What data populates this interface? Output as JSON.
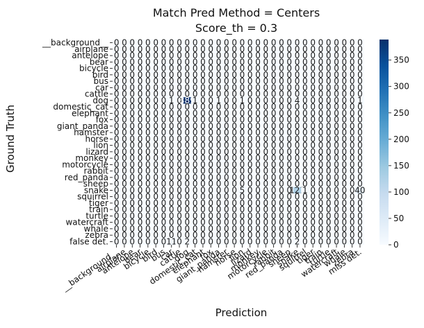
{
  "chart_data": {
    "type": "heatmap",
    "title": "Match Pred Method = Centers",
    "subtitle": "Score_th = 0.3",
    "xlabel": "Prediction",
    "ylabel": "Ground Truth",
    "row_labels": [
      "__background__",
      "airplane",
      "antelope",
      "bear",
      "bicycle",
      "bird",
      "bus",
      "car",
      "cattle",
      "dog",
      "domestic_cat",
      "elephant",
      "fox",
      "giant_panda",
      "hamster",
      "horse",
      "lion",
      "lizard",
      "monkey",
      "motorcycle",
      "rabbit",
      "red_panda",
      "sheep",
      "snake",
      "squirrel",
      "tiger",
      "train",
      "turtle",
      "watercraft",
      "whale",
      "zebra",
      "false det."
    ],
    "col_labels": [
      "__background__",
      "airplane",
      "antelope",
      "bear",
      "bicycle",
      "bird",
      "bus",
      "car",
      "cattle",
      "dog",
      "domestic_cat",
      "elephant",
      "fox",
      "giant_panda",
      "hamster",
      "horse",
      "lion",
      "lizard",
      "monkey",
      "motorcycle",
      "rabbit",
      "red_panda",
      "sheep",
      "snake",
      "squirrel",
      "tiger",
      "train",
      "turtle",
      "watercraft",
      "whale",
      "zebra",
      "miss det."
    ],
    "nonzero_cells": [
      {
        "row": "dog",
        "col": "dog",
        "value": 389
      },
      {
        "row": "dog",
        "col": "car",
        "value": 1
      },
      {
        "row": "dog",
        "col": "domestic_cat",
        "value": 1
      },
      {
        "row": "dog",
        "col": "giant_panda",
        "value": 1
      },
      {
        "row": "dog",
        "col": "lion",
        "value": 1
      },
      {
        "row": "dog",
        "col": "snake",
        "value": 4
      },
      {
        "row": "dog",
        "col": "miss det.",
        "value": 1
      },
      {
        "row": "snake",
        "col": "lion",
        "value": 5
      },
      {
        "row": "snake",
        "col": "snake",
        "value": 121
      },
      {
        "row": "snake",
        "col": "squirrel",
        "value": 1
      },
      {
        "row": "snake",
        "col": "miss det.",
        "value": 40
      },
      {
        "row": "false det.",
        "col": "car",
        "value": 11
      },
      {
        "row": "false det.",
        "col": "dog",
        "value": 2
      },
      {
        "row": "false det.",
        "col": "snake",
        "value": 2
      }
    ],
    "default_value": 0,
    "colorbar": {
      "min": 0,
      "max": 389,
      "ticks": [
        0,
        50,
        100,
        150,
        200,
        250,
        300,
        350
      ],
      "colors": [
        "#f7fbff",
        "#deebf7",
        "#c6dbef",
        "#9ecae1",
        "#6baed6",
        "#4292c6",
        "#2171b5",
        "#08519c",
        "#08306b"
      ]
    }
  }
}
